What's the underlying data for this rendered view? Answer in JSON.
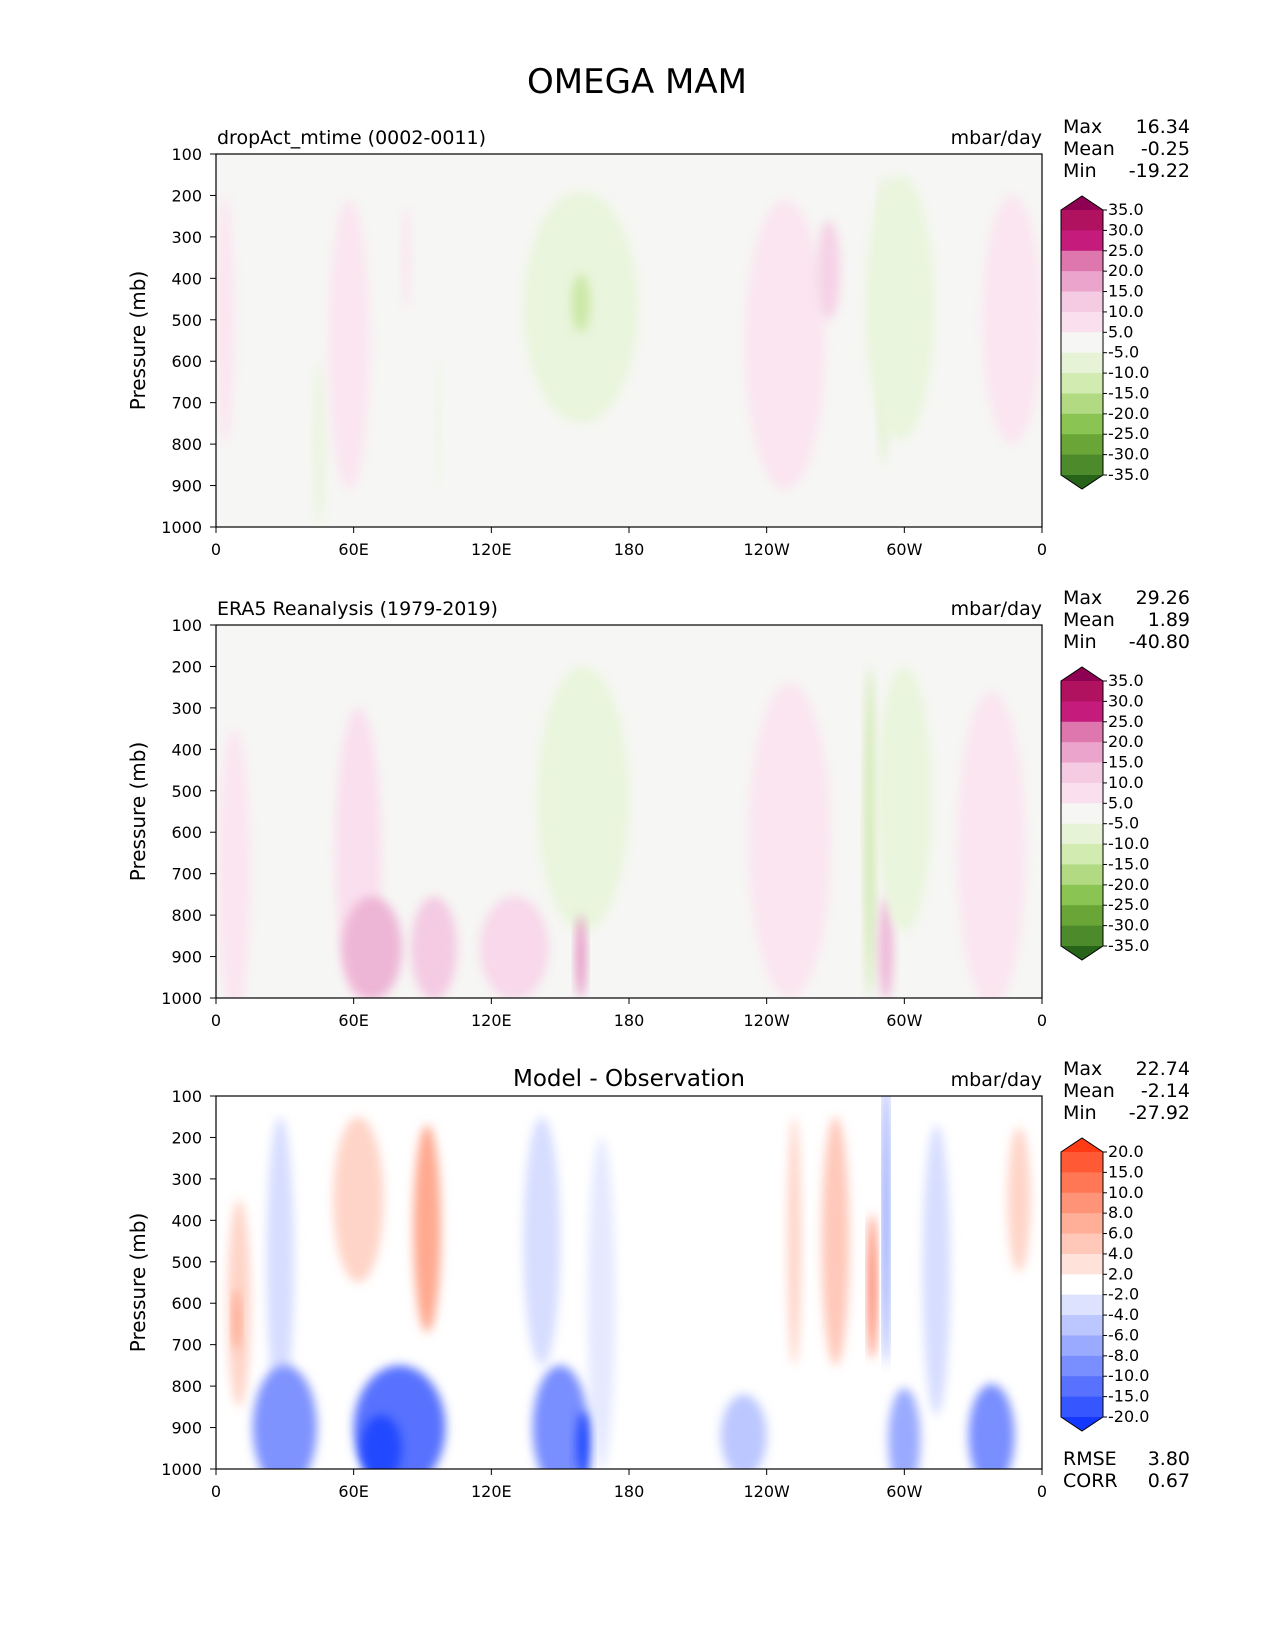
{
  "title": "OMEGA MAM",
  "chart_data": [
    {
      "type": "heatmap",
      "title": "dropAct_mtime (0002-0011)",
      "units": "mbar/day",
      "ylabel": "Pressure (mb)",
      "xlabel": "",
      "x_ticks": [
        "0",
        "60E",
        "120E",
        "180",
        "120W",
        "60W",
        "0"
      ],
      "y_ticks": [
        "100",
        "200",
        "300",
        "400",
        "500",
        "600",
        "700",
        "800",
        "900",
        "1000"
      ],
      "xlim": [
        0,
        360
      ],
      "ylim": [
        1000,
        100
      ],
      "stats": [
        {
          "label": "Max",
          "value": "16.34"
        },
        {
          "label": "Mean",
          "value": "-0.25"
        },
        {
          "label": "Min",
          "value": "-19.22"
        }
      ],
      "colorbar": {
        "levels": [
          "35.0",
          "30.0",
          "25.0",
          "20.0",
          "15.0",
          "10.0",
          "5.0",
          "-5.0",
          "-10.0",
          "-15.0",
          "-20.0",
          "-25.0",
          "-30.0",
          "-35.0"
        ],
        "colors": [
          "#8e0152",
          "#b0125f",
          "#c51b7d",
          "#de77ae",
          "#eba4cc",
          "#f4cbe3",
          "#fadfee",
          "#f6f6f4",
          "#e6f3d7",
          "#d2ebb0",
          "#b1da83",
          "#8ac553",
          "#69a637",
          "#4d8a2b",
          "#27641a"
        ]
      },
      "field": {
        "background": "#f6f6f4",
        "blobs": [
          {
            "lon": 4,
            "p": 500,
            "w": 8,
            "h": 600,
            "c": "#fbe5f0"
          },
          {
            "lon": 45,
            "p": 800,
            "w": 5,
            "h": 400,
            "c": "#eaf4de"
          },
          {
            "lon": 58,
            "p": 560,
            "w": 18,
            "h": 700,
            "c": "#fbe5f0"
          },
          {
            "lon": 83,
            "p": 350,
            "w": 4,
            "h": 250,
            "c": "#fbe5f0"
          },
          {
            "lon": 97,
            "p": 750,
            "w": 2,
            "h": 300,
            "c": "#eaf4de"
          },
          {
            "lon": 159,
            "p": 470,
            "w": 50,
            "h": 560,
            "c": "#e9f5dc"
          },
          {
            "lon": 159,
            "p": 460,
            "w": 8,
            "h": 140,
            "c": "#cbe8a6"
          },
          {
            "lon": 248,
            "p": 560,
            "w": 35,
            "h": 700,
            "c": "#fbe5f0"
          },
          {
            "lon": 267,
            "p": 380,
            "w": 10,
            "h": 240,
            "c": "#f6d2e6"
          },
          {
            "lon": 291,
            "p": 500,
            "w": 4,
            "h": 700,
            "c": "#d8edbf"
          },
          {
            "lon": 298,
            "p": 470,
            "w": 30,
            "h": 640,
            "c": "#e9f5dc"
          },
          {
            "lon": 347,
            "p": 500,
            "w": 26,
            "h": 600,
            "c": "#fbe5f0"
          }
        ]
      }
    },
    {
      "type": "heatmap",
      "title": "ERA5 Reanalysis (1979-2019)",
      "units": "mbar/day",
      "ylabel": "Pressure (mb)",
      "xlabel": "",
      "x_ticks": [
        "0",
        "60E",
        "120E",
        "180",
        "120W",
        "60W",
        "0"
      ],
      "y_ticks": [
        "100",
        "200",
        "300",
        "400",
        "500",
        "600",
        "700",
        "800",
        "900",
        "1000"
      ],
      "xlim": [
        0,
        360
      ],
      "ylim": [
        1000,
        100
      ],
      "stats": [
        {
          "label": "Max",
          "value": "29.26"
        },
        {
          "label": "Mean",
          "value": "1.89"
        },
        {
          "label": "Min",
          "value": "-40.80"
        }
      ],
      "colorbar": {
        "levels": [
          "35.0",
          "30.0",
          "25.0",
          "20.0",
          "15.0",
          "10.0",
          "5.0",
          "-5.0",
          "-10.0",
          "-15.0",
          "-20.0",
          "-25.0",
          "-30.0",
          "-35.0"
        ],
        "colors": [
          "#8e0152",
          "#b0125f",
          "#c51b7d",
          "#de77ae",
          "#eba4cc",
          "#f4cbe3",
          "#fadfee",
          "#f6f6f4",
          "#e6f3d7",
          "#d2ebb0",
          "#b1da83",
          "#8ac553",
          "#69a637",
          "#4d8a2b",
          "#27641a"
        ]
      },
      "field": {
        "background": "#f6f6f4",
        "blobs": [
          {
            "lon": 8,
            "p": 700,
            "w": 14,
            "h": 700,
            "c": "#fbe5f0"
          },
          {
            "lon": 62,
            "p": 650,
            "w": 20,
            "h": 700,
            "c": "#fadfee"
          },
          {
            "lon": 68,
            "p": 880,
            "w": 26,
            "h": 250,
            "c": "#eeb6d6"
          },
          {
            "lon": 95,
            "p": 880,
            "w": 20,
            "h": 250,
            "c": "#f4cbe3"
          },
          {
            "lon": 160,
            "p": 520,
            "w": 40,
            "h": 640,
            "c": "#e9f5dc"
          },
          {
            "lon": 159,
            "p": 900,
            "w": 4,
            "h": 200,
            "c": "#e58cbf"
          },
          {
            "lon": 130,
            "p": 880,
            "w": 30,
            "h": 250,
            "c": "#f8d8ea"
          },
          {
            "lon": 250,
            "p": 620,
            "w": 36,
            "h": 760,
            "c": "#fbe5f0"
          },
          {
            "lon": 285,
            "p": 600,
            "w": 4,
            "h": 800,
            "c": "#cbe8a6"
          },
          {
            "lon": 292,
            "p": 880,
            "w": 6,
            "h": 250,
            "c": "#eeb6d6"
          },
          {
            "lon": 300,
            "p": 520,
            "w": 24,
            "h": 640,
            "c": "#e9f5dc"
          },
          {
            "lon": 338,
            "p": 640,
            "w": 30,
            "h": 760,
            "c": "#fbe5f0"
          }
        ]
      }
    },
    {
      "type": "heatmap",
      "title": "Model - Observation",
      "units": "mbar/day",
      "ylabel": "Pressure (mb)",
      "xlabel": "",
      "x_ticks": [
        "0",
        "60E",
        "120E",
        "180",
        "120W",
        "60W",
        "0"
      ],
      "y_ticks": [
        "100",
        "200",
        "300",
        "400",
        "500",
        "600",
        "700",
        "800",
        "900",
        "1000"
      ],
      "xlim": [
        0,
        360
      ],
      "ylim": [
        1000,
        100
      ],
      "stats": [
        {
          "label": "Max",
          "value": "22.74"
        },
        {
          "label": "Mean",
          "value": "-2.14"
        },
        {
          "label": "Min",
          "value": "-27.92"
        }
      ],
      "metrics": [
        {
          "label": "RMSE",
          "value": "3.80"
        },
        {
          "label": "CORR",
          "value": "0.67"
        }
      ],
      "colorbar": {
        "levels": [
          "20.0",
          "15.0",
          "10.0",
          "8.0",
          "6.0",
          "4.0",
          "2.0",
          "-2.0",
          "-4.0",
          "-6.0",
          "-8.0",
          "-10.0",
          "-15.0",
          "-20.0"
        ],
        "colors": [
          "#ff3b15",
          "#ff5a35",
          "#ff7755",
          "#ff9377",
          "#ffae98",
          "#ffc8b9",
          "#ffe3db",
          "#ffffff",
          "#dde3ff",
          "#bcc7ff",
          "#9aaaff",
          "#798eff",
          "#5872ff",
          "#3656ff",
          "#1538ff"
        ]
      },
      "field": {
        "background": "#ffffff",
        "blobs": [
          {
            "lon": 10,
            "p": 600,
            "w": 10,
            "h": 500,
            "c": "#ffd4c8"
          },
          {
            "lon": 9,
            "p": 640,
            "w": 3,
            "h": 150,
            "c": "#ff9e82"
          },
          {
            "lon": 28,
            "p": 500,
            "w": 12,
            "h": 700,
            "c": "#d6ddff"
          },
          {
            "lon": 62,
            "p": 350,
            "w": 22,
            "h": 400,
            "c": "#ffd4c8"
          },
          {
            "lon": 92,
            "p": 420,
            "w": 12,
            "h": 500,
            "c": "#ffa990"
          },
          {
            "lon": 142,
            "p": 450,
            "w": 16,
            "h": 600,
            "c": "#d6ddff"
          },
          {
            "lon": 168,
            "p": 600,
            "w": 12,
            "h": 800,
            "c": "#e5e9ff"
          },
          {
            "lon": 252,
            "p": 450,
            "w": 6,
            "h": 600,
            "c": "#ffd4c8"
          },
          {
            "lon": 270,
            "p": 450,
            "w": 12,
            "h": 600,
            "c": "#ffc8b9"
          },
          {
            "lon": 286,
            "p": 560,
            "w": 3,
            "h": 350,
            "c": "#ff5a35"
          },
          {
            "lon": 292,
            "p": 400,
            "w": 2,
            "h": 700,
            "c": "#3656ff"
          },
          {
            "lon": 314,
            "p": 520,
            "w": 12,
            "h": 700,
            "c": "#d6ddff"
          },
          {
            "lon": 350,
            "p": 350,
            "w": 10,
            "h": 350,
            "c": "#ffd4c8"
          },
          {
            "lon": 30,
            "p": 900,
            "w": 28,
            "h": 300,
            "c": "#7f93ff"
          },
          {
            "lon": 80,
            "p": 900,
            "w": 40,
            "h": 300,
            "c": "#5872ff"
          },
          {
            "lon": 72,
            "p": 950,
            "w": 18,
            "h": 160,
            "c": "#2448ff"
          },
          {
            "lon": 150,
            "p": 900,
            "w": 24,
            "h": 300,
            "c": "#798eff"
          },
          {
            "lon": 160,
            "p": 950,
            "w": 6,
            "h": 180,
            "c": "#2448ff"
          },
          {
            "lon": 230,
            "p": 920,
            "w": 20,
            "h": 200,
            "c": "#bcc7ff"
          },
          {
            "lon": 300,
            "p": 930,
            "w": 14,
            "h": 250,
            "c": "#9aaaff"
          },
          {
            "lon": 338,
            "p": 920,
            "w": 20,
            "h": 250,
            "c": "#798eff"
          }
        ]
      }
    }
  ]
}
